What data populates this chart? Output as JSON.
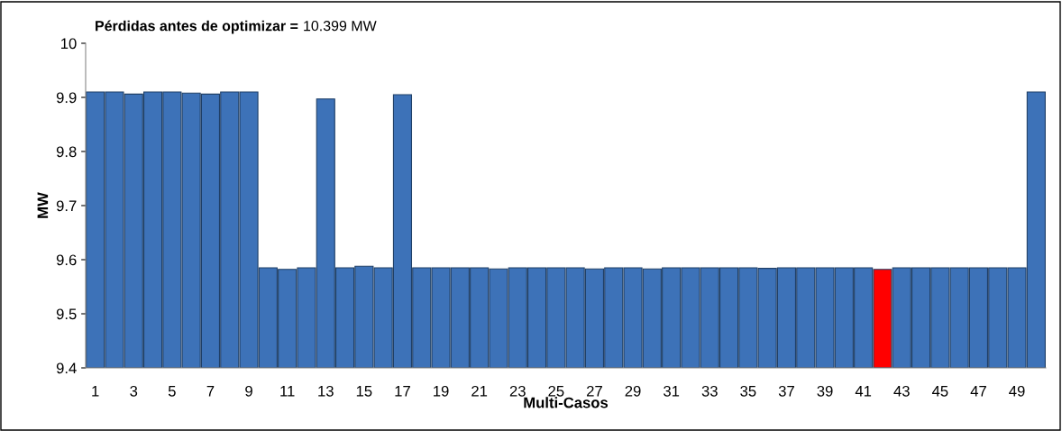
{
  "chart_data": {
    "type": "bar",
    "xlabel": "Multi-Casos",
    "ylabel": "MW",
    "annotations": [
      "Pérdidas antes de optimizar =",
      "10.399 MW"
    ],
    "categories": [
      "1",
      null,
      "3",
      null,
      "5",
      null,
      "7",
      null,
      "9",
      null,
      "11",
      null,
      "13",
      null,
      "15",
      null,
      "17",
      null,
      "19",
      null,
      "21",
      null,
      "23",
      null,
      "25",
      null,
      "27",
      null,
      "29",
      null,
      "31",
      null,
      "33",
      null,
      "35",
      null,
      "37",
      null,
      "39",
      null,
      "41",
      null,
      "43",
      null,
      "45",
      null,
      "47",
      null,
      "49",
      null
    ],
    "values": [
      9.91,
      9.91,
      9.906,
      9.91,
      9.91,
      9.908,
      9.906,
      9.91,
      9.91,
      9.585,
      9.582,
      9.585,
      9.897,
      9.585,
      9.588,
      9.585,
      9.905,
      9.585,
      9.585,
      9.585,
      9.585,
      9.583,
      9.585,
      9.585,
      9.585,
      9.585,
      9.583,
      9.585,
      9.585,
      9.583,
      9.585,
      9.585,
      9.585,
      9.585,
      9.585,
      9.584,
      9.585,
      9.585,
      9.585,
      9.585,
      9.585,
      9.582,
      9.585,
      9.585,
      9.585,
      9.585,
      9.585,
      9.585,
      9.585,
      9.91
    ],
    "colors": [
      "#3d72b8",
      "#3d72b8",
      "#3d72b8",
      "#3d72b8",
      "#3d72b8",
      "#3d72b8",
      "#3d72b8",
      "#3d72b8",
      "#3d72b8",
      "#3d72b8",
      "#3d72b8",
      "#3d72b8",
      "#3d72b8",
      "#3d72b8",
      "#3d72b8",
      "#3d72b8",
      "#3d72b8",
      "#3d72b8",
      "#3d72b8",
      "#3d72b8",
      "#3d72b8",
      "#3d72b8",
      "#3d72b8",
      "#3d72b8",
      "#3d72b8",
      "#3d72b8",
      "#3d72b8",
      "#3d72b8",
      "#3d72b8",
      "#3d72b8",
      "#3d72b8",
      "#3d72b8",
      "#3d72b8",
      "#3d72b8",
      "#3d72b8",
      "#3d72b8",
      "#3d72b8",
      "#3d72b8",
      "#3d72b8",
      "#3d72b8",
      "#3d72b8",
      "#ff0000",
      "#3d72b8",
      "#3d72b8",
      "#3d72b8",
      "#3d72b8",
      "#3d72b8",
      "#3d72b8",
      "#3d72b8",
      "#3d72b8"
    ],
    "ylim": [
      9.4,
      10
    ],
    "yticks": [
      9.4,
      9.5,
      9.6,
      9.7,
      9.8,
      9.9,
      10
    ],
    "grid": false
  }
}
